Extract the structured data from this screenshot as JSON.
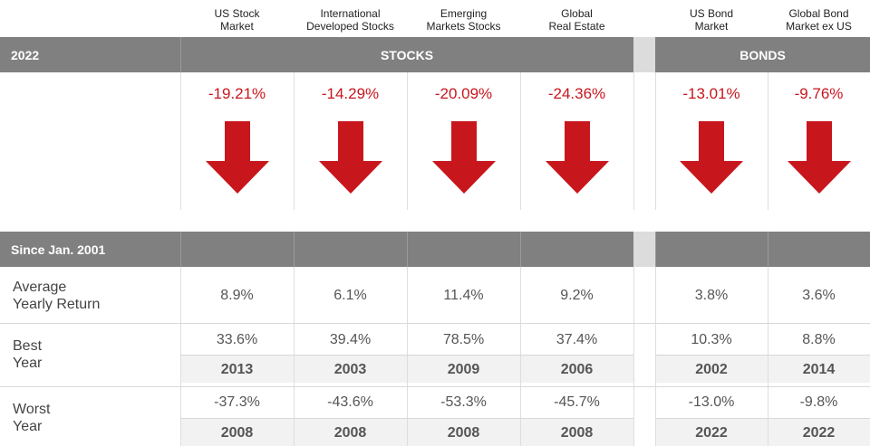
{
  "columns": [
    {
      "label": "US Stock\nMarket"
    },
    {
      "label": "International\nDeveloped Stocks"
    },
    {
      "label": "Emerging\nMarkets Stocks"
    },
    {
      "label": "Global\nReal Estate"
    },
    {
      "label": "US Bond\nMarket"
    },
    {
      "label": "Global Bond\nMarket ex US"
    }
  ],
  "header_bar": {
    "year": "2022",
    "stocks": "STOCKS",
    "bonds": "BONDS"
  },
  "returns_2022": [
    "-19.21%",
    "-14.29%",
    "-20.09%",
    "-24.36%",
    "-13.01%",
    "-9.76%"
  ],
  "since_bar": {
    "label": "Since Jan. 2001"
  },
  "rows": {
    "average": {
      "label": "Average\nYearly Return",
      "values": [
        "8.9%",
        "6.1%",
        "11.4%",
        "9.2%",
        "3.8%",
        "3.6%"
      ]
    },
    "best": {
      "label": "Best\nYear",
      "values": [
        "33.6%",
        "39.4%",
        "78.5%",
        "37.4%",
        "10.3%",
        "8.8%"
      ],
      "years": [
        "2013",
        "2003",
        "2009",
        "2006",
        "2002",
        "2014"
      ]
    },
    "worst": {
      "label": "Worst\nYear",
      "values": [
        "-37.3%",
        "-43.6%",
        "-53.3%",
        "-45.7%",
        "-13.0%",
        "-9.8%"
      ],
      "years": [
        "2008",
        "2008",
        "2008",
        "2008",
        "2022",
        "2022"
      ]
    }
  },
  "colors": {
    "down": "#c8161d",
    "bar": "#808080",
    "gap": "#dcdcdc"
  },
  "chart_data": {
    "type": "table",
    "title": "2022",
    "categories": [
      "US Stock Market",
      "International Developed Stocks",
      "Emerging Markets Stocks",
      "Global Real Estate",
      "US Bond Market",
      "Global Bond Market ex US"
    ],
    "groups": [
      {
        "name": "STOCKS",
        "columns": [
          0,
          1,
          2,
          3
        ]
      },
      {
        "name": "BONDS",
        "columns": [
          4,
          5
        ]
      }
    ],
    "series": [
      {
        "name": "2022",
        "values": [
          -19.21,
          -14.29,
          -20.09,
          -24.36,
          -13.01,
          -9.76
        ]
      },
      {
        "name": "Average Yearly Return",
        "values": [
          8.9,
          6.1,
          11.4,
          9.2,
          3.8,
          3.6
        ]
      },
      {
        "name": "Best Year",
        "values": [
          33.6,
          39.4,
          78.5,
          37.4,
          10.3,
          8.8
        ],
        "years": [
          2013,
          2003,
          2009,
          2006,
          2002,
          2014
        ]
      },
      {
        "name": "Worst Year",
        "values": [
          -37.3,
          -43.6,
          -53.3,
          -45.7,
          -13.0,
          -9.8
        ],
        "years": [
          2008,
          2008,
          2008,
          2008,
          2022,
          2022
        ]
      }
    ]
  }
}
